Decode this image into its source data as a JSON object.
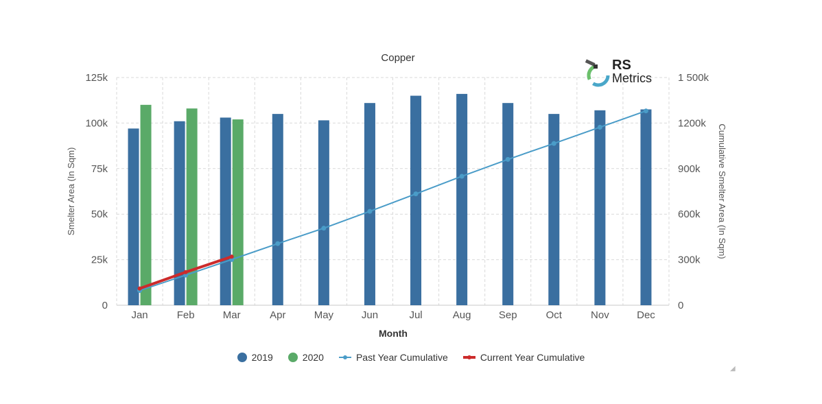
{
  "chart_data": {
    "type": "bar",
    "title": "Copper",
    "xlabel": "Month",
    "ylabel": "Smelter Area (In Sqm)",
    "y2label": "Cumulative Smelter Area (In Sqm)",
    "categories": [
      "Jan",
      "Feb",
      "Mar",
      "Apr",
      "May",
      "Jun",
      "Jul",
      "Aug",
      "Sep",
      "Oct",
      "Nov",
      "Dec"
    ],
    "ylim": [
      0,
      125000
    ],
    "y2lim": [
      0,
      1500000
    ],
    "y_ticks": [
      "0",
      "25k",
      "50k",
      "75k",
      "100k",
      "125k"
    ],
    "y2_ticks": [
      "0",
      "300k",
      "600k",
      "900k",
      "1200k",
      "1 500k"
    ],
    "grid": true,
    "legend_position": "bottom",
    "series": [
      {
        "name": "2019",
        "kind": "bar",
        "axis": "left",
        "color": "#3a6fa0",
        "values": [
          97000,
          101000,
          103000,
          105000,
          101500,
          111000,
          115000,
          116000,
          111000,
          105000,
          107000,
          107500
        ]
      },
      {
        "name": "2020",
        "kind": "bar",
        "axis": "left",
        "color": "#5aaa68",
        "values": [
          110000,
          108000,
          102000,
          null,
          null,
          null,
          null,
          null,
          null,
          null,
          null,
          null
        ]
      },
      {
        "name": "Past Year Cumulative",
        "kind": "line",
        "axis": "right",
        "color": "#4a9cc8",
        "values": [
          97000,
          198000,
          301000,
          406000,
          507500,
          618500,
          733500,
          849500,
          960500,
          1065500,
          1172500,
          1280000
        ]
      },
      {
        "name": "Current Year Cumulative",
        "kind": "line",
        "axis": "right",
        "color": "#cc2b2b",
        "values": [
          110000,
          218000,
          320000,
          null,
          null,
          null,
          null,
          null,
          null,
          null,
          null,
          null
        ]
      }
    ]
  },
  "logo": {
    "line1": "RS",
    "line2": "Metrics"
  },
  "colors": {
    "bar2019": "#3a6fa0",
    "bar2020": "#5aaa68",
    "past": "#4a9cc8",
    "current": "#cc2b2b"
  }
}
